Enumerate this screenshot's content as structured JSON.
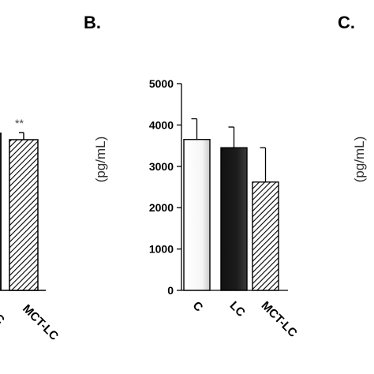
{
  "panels": {
    "b_label": "B.",
    "c_label": "C."
  },
  "left_fragment": {
    "significance": "**",
    "category": "MCT-LC",
    "category_partial": "C"
  },
  "right_fragment": {
    "ylabel": "(pg/mL)"
  },
  "colors": {
    "axis": "#000000",
    "bar_c": "#ffffff",
    "bar_lc": "#1a1a1a",
    "hatch": "#000000"
  },
  "chart_data": [
    {
      "type": "bar",
      "title": "",
      "xlabel": "",
      "ylabel": "(pg/mL)",
      "ylim": [
        0,
        5000
      ],
      "yticks": [
        0,
        1000,
        2000,
        3000,
        4000,
        5000
      ],
      "categories": [
        "C",
        "LC",
        "MCT-LC"
      ],
      "values": [
        3650,
        3450,
        2620
      ],
      "errors": [
        500,
        500,
        830
      ],
      "fills": [
        "white",
        "black",
        "hatched"
      ],
      "grid": false
    }
  ]
}
